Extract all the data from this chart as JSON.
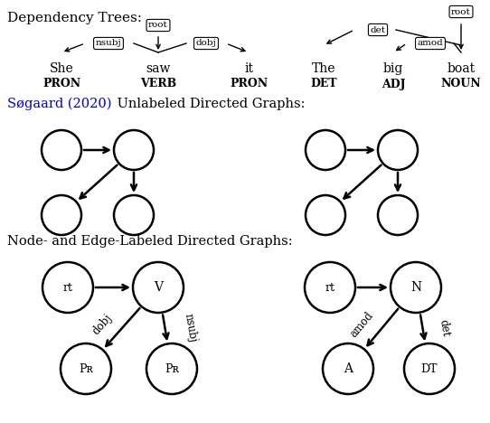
{
  "title": "Dependency Trees:",
  "section2_blue": "Søgaard (2020)",
  "section2_black": " Unlabeled Directed Graphs:",
  "section3": "Node- and Edge-Labeled Directed Graphs:",
  "blue_color": "#0000CC",
  "figsize": [
    5.42,
    4.68
  ],
  "dpi": 100
}
